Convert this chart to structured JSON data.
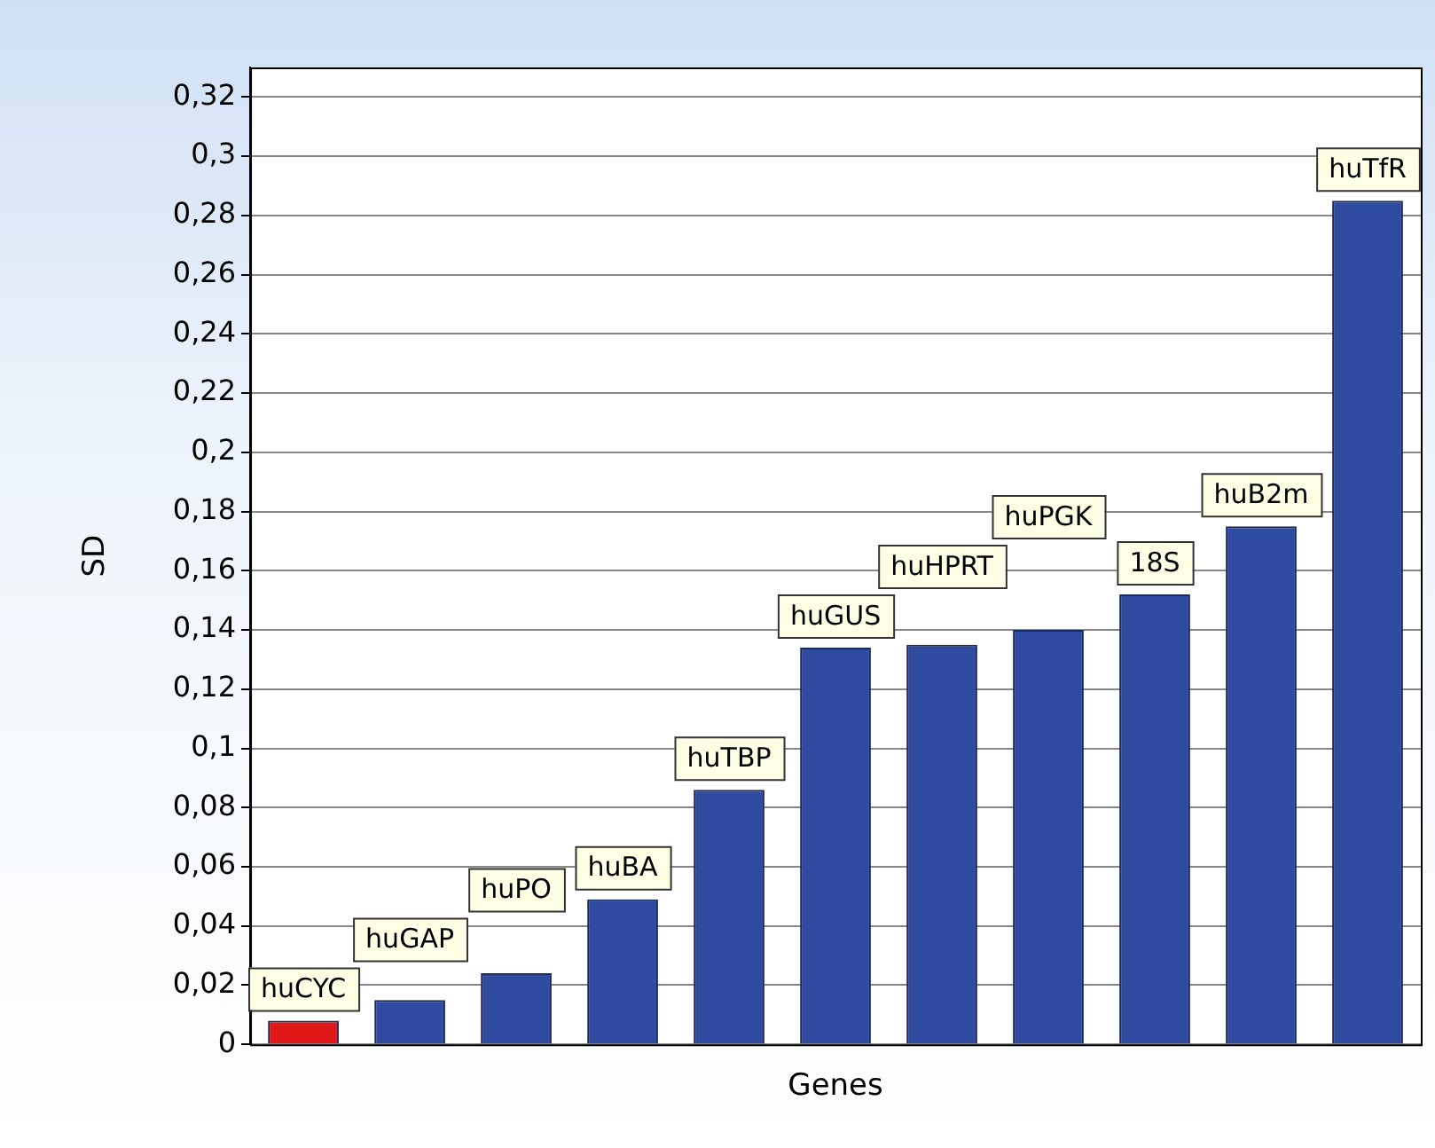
{
  "chart_data": {
    "type": "bar",
    "xlabel": "Genes",
    "ylabel": "SD",
    "categories": [
      "huCYC",
      "huGAP",
      "huPO",
      "huBA",
      "huTBP",
      "huGUS",
      "huHPRT",
      "huPGK",
      "18S",
      "huB2m",
      "huTfR"
    ],
    "values": [
      0.008,
      0.015,
      0.024,
      0.049,
      0.086,
      0.134,
      0.135,
      0.14,
      0.152,
      0.175,
      0.285
    ],
    "colors": [
      "#e01818",
      "#2f4b9f",
      "#2f4b9f",
      "#2f4b9f",
      "#2f4b9f",
      "#2f4b9f",
      "#2f4b9f",
      "#2f4b9f",
      "#2f4b9f",
      "#2f4b9f",
      "#2f4b9f"
    ],
    "ylim": [
      0,
      0.33
    ],
    "yticks": [
      {
        "value": 0,
        "label": "0"
      },
      {
        "value": 0.02,
        "label": "0,02"
      },
      {
        "value": 0.04,
        "label": "0,04"
      },
      {
        "value": 0.06,
        "label": "0,06"
      },
      {
        "value": 0.08,
        "label": "0,08"
      },
      {
        "value": 0.1,
        "label": "0,1"
      },
      {
        "value": 0.12,
        "label": "0,12"
      },
      {
        "value": 0.14,
        "label": "0,14"
      },
      {
        "value": 0.16,
        "label": "0,16"
      },
      {
        "value": 0.18,
        "label": "0,18"
      },
      {
        "value": 0.2,
        "label": "0,2"
      },
      {
        "value": 0.22,
        "label": "0,22"
      },
      {
        "value": 0.24,
        "label": "0,24"
      },
      {
        "value": 0.26,
        "label": "0,26"
      },
      {
        "value": 0.28,
        "label": "0,28"
      },
      {
        "value": 0.3,
        "label": "0,3"
      },
      {
        "value": 0.32,
        "label": "0,32"
      }
    ],
    "grid": "y",
    "tick_labels": "y",
    "legend": false
  }
}
